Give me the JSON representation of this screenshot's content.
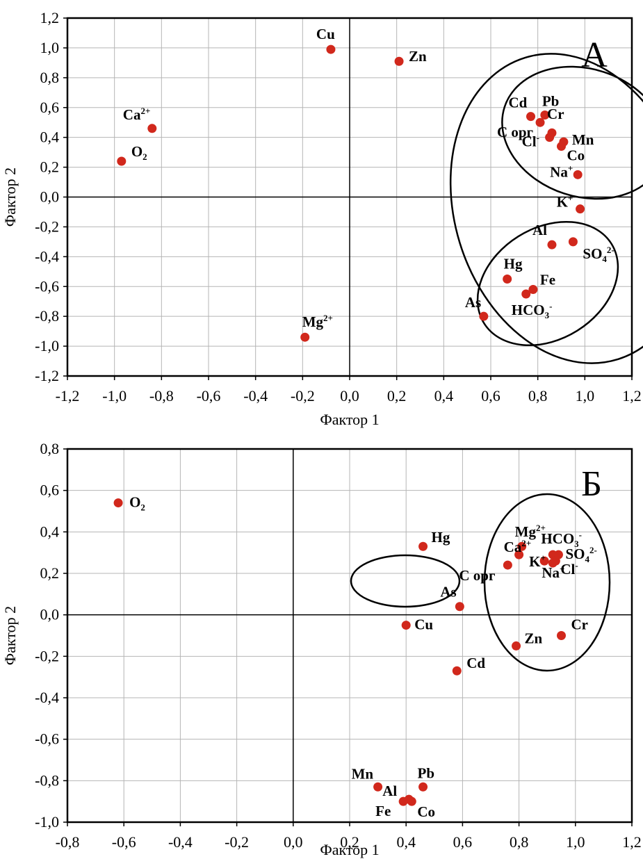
{
  "chart_data": [
    {
      "type": "scatter",
      "panel_label": "А",
      "xlabel": "Фактор 1",
      "ylabel": "Фактор 2",
      "xlim": [
        -1.2,
        1.2
      ],
      "ylim": [
        -1.2,
        1.2
      ],
      "x_ticks": [
        "-1,2",
        "-1,0",
        "-0,8",
        "-0,6",
        "-0,4",
        "-0,2",
        "0,0",
        "0,2",
        "0,4",
        "0,6",
        "0,8",
        "1,0",
        "1,2"
      ],
      "y_ticks": [
        "1,2",
        "1,0",
        "0,8",
        "0,6",
        "0,4",
        "0,2",
        "0,0",
        "-0,2",
        "-0,4",
        "-0,6",
        "-0,8",
        "-1,0",
        "-1,2"
      ],
      "grid": true,
      "points": [
        {
          "label": "Cu",
          "x": -0.08,
          "y": 0.99
        },
        {
          "label": "Zn",
          "x": 0.21,
          "y": 0.91
        },
        {
          "label": "Ca",
          "sup": "2+",
          "x": -0.84,
          "y": 0.46
        },
        {
          "label": "O",
          "sub": "2",
          "x": -0.97,
          "y": 0.24
        },
        {
          "label": "Mg",
          "sup": "2+",
          "x": -0.19,
          "y": -0.94
        },
        {
          "label": "Cd",
          "x": 0.77,
          "y": 0.54
        },
        {
          "label": "Pb",
          "x": 0.83,
          "y": 0.55
        },
        {
          "label": "Cr",
          "x": 0.81,
          "y": 0.5
        },
        {
          "label": "C орг",
          "x": 0.86,
          "y": 0.43
        },
        {
          "label": "Mn",
          "x": 0.91,
          "y": 0.37
        },
        {
          "label": "Cl",
          "sup": "-",
          "x": 0.85,
          "y": 0.4
        },
        {
          "label": "Co",
          "x": 0.9,
          "y": 0.34
        },
        {
          "label": "Na",
          "sup": "+",
          "x": 0.97,
          "y": 0.15
        },
        {
          "label": "K",
          "sup": "+",
          "x": 0.98,
          "y": -0.08
        },
        {
          "label": "Al",
          "x": 0.86,
          "y": -0.32
        },
        {
          "label": "SO",
          "sub": "4",
          "sup": "2-",
          "x": 0.95,
          "y": -0.3
        },
        {
          "label": "Hg",
          "x": 0.67,
          "y": -0.55
        },
        {
          "label": "Fe",
          "x": 0.78,
          "y": -0.62
        },
        {
          "label": "HCO",
          "sub": "3",
          "sup": "-",
          "x": 0.75,
          "y": -0.65
        },
        {
          "label": "As",
          "x": 0.57,
          "y": -0.8
        }
      ]
    },
    {
      "type": "scatter",
      "panel_label": "Б",
      "xlabel": "Фактор 1",
      "ylabel": "Фактор 2",
      "xlim": [
        -0.8,
        1.2
      ],
      "ylim": [
        -1.0,
        0.8
      ],
      "x_ticks": [
        "-0,8",
        "-0,6",
        "-0,4",
        "-0,2",
        "0,0",
        "0,2",
        "0,4",
        "0,6",
        "0,8",
        "1,0",
        "1,2"
      ],
      "y_ticks": [
        "0,8",
        "0,6",
        "0,4",
        "0,2",
        "0,0",
        "-0,2",
        "-0,4",
        "-0,6",
        "-0,8",
        "-1,0"
      ],
      "grid": true,
      "points": [
        {
          "label": "O",
          "sub": "2",
          "x": -0.62,
          "y": 0.54
        },
        {
          "label": "Hg",
          "x": 0.46,
          "y": 0.33
        },
        {
          "label": "As",
          "x": 0.59,
          "y": 0.04
        },
        {
          "label": "Cu",
          "x": 0.4,
          "y": -0.05
        },
        {
          "label": "Cd",
          "x": 0.58,
          "y": -0.27
        },
        {
          "label": "Mg",
          "sup": "2+",
          "x": 0.81,
          "y": 0.33
        },
        {
          "label": "HCO",
          "sub": "3",
          "sup": "-",
          "x": 0.92,
          "y": 0.29
        },
        {
          "label": "Ca",
          "sup": "2+",
          "x": 0.8,
          "y": 0.29
        },
        {
          "label": "K",
          "sup": "+",
          "x": 0.89,
          "y": 0.26
        },
        {
          "label": "SO",
          "sub": "4",
          "sup": "2-",
          "x": 0.94,
          "y": 0.29
        },
        {
          "label": "C орг",
          "x": 0.76,
          "y": 0.24
        },
        {
          "label": "Na",
          "sup": "+",
          "x": 0.92,
          "y": 0.25
        },
        {
          "label": "Cl",
          "sup": "-",
          "x": 0.93,
          "y": 0.26
        },
        {
          "label": "Zn",
          "x": 0.79,
          "y": -0.15
        },
        {
          "label": "Cr",
          "x": 0.95,
          "y": -0.1
        },
        {
          "label": "Mn",
          "x": 0.3,
          "y": -0.83
        },
        {
          "label": "Pb",
          "x": 0.46,
          "y": -0.83
        },
        {
          "label": "Al",
          "x": 0.41,
          "y": -0.89
        },
        {
          "label": "Fe",
          "x": 0.39,
          "y": -0.9
        },
        {
          "label": "Co",
          "x": 0.42,
          "y": -0.9
        }
      ]
    }
  ]
}
